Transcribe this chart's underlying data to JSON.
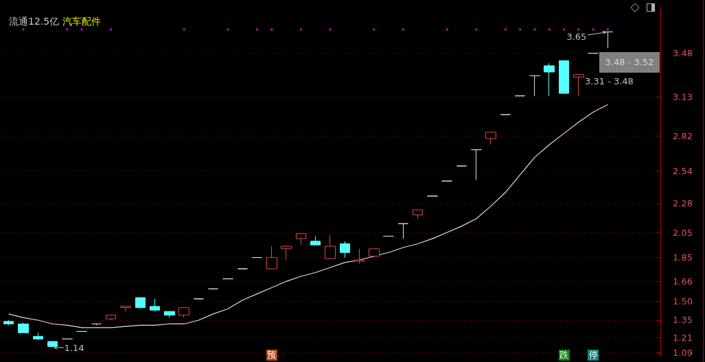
{
  "chart_data": {
    "type": "candlestick",
    "title": "流通12.5亿",
    "subtitle": "汽车配件",
    "categories": [
      null,
      null,
      null,
      null,
      null,
      null,
      null,
      null,
      null,
      null,
      null,
      null,
      null,
      null,
      null,
      null,
      null,
      null,
      null,
      null,
      null,
      null,
      null,
      null,
      null,
      null,
      null,
      null,
      null,
      null,
      null,
      null,
      null,
      null,
      null,
      null,
      null,
      null,
      null,
      null,
      null,
      null
    ],
    "ohlc": [
      [
        1.34,
        1.35,
        1.31,
        1.32
      ],
      [
        1.32,
        1.33,
        1.25,
        1.25
      ],
      [
        1.22,
        1.25,
        1.19,
        1.2
      ],
      [
        1.18,
        1.18,
        1.14,
        1.14
      ],
      [
        1.2,
        1.2,
        1.2,
        1.2
      ],
      [
        1.26,
        1.26,
        1.26,
        1.26
      ],
      [
        1.32,
        1.32,
        1.31,
        1.32
      ],
      [
        1.36,
        1.39,
        1.35,
        1.39
      ],
      [
        1.45,
        1.46,
        1.42,
        1.46
      ],
      [
        1.53,
        1.53,
        1.44,
        1.45
      ],
      [
        1.46,
        1.52,
        1.42,
        1.43
      ],
      [
        1.42,
        1.42,
        1.37,
        1.39
      ],
      [
        1.39,
        1.45,
        1.37,
        1.45
      ],
      [
        1.52,
        1.52,
        1.52,
        1.52
      ],
      [
        1.6,
        1.6,
        1.6,
        1.6
      ],
      [
        1.68,
        1.68,
        1.68,
        1.68
      ],
      [
        1.76,
        1.76,
        1.76,
        1.76
      ],
      [
        1.85,
        1.85,
        1.85,
        1.85
      ],
      [
        1.76,
        1.94,
        1.76,
        1.85
      ],
      [
        1.92,
        1.94,
        1.83,
        1.94
      ],
      [
        2.0,
        2.04,
        1.95,
        2.04
      ],
      [
        1.98,
        2.02,
        1.95,
        1.95
      ],
      [
        1.84,
        2.03,
        1.84,
        1.94
      ],
      [
        1.96,
        1.98,
        1.85,
        1.89
      ],
      [
        1.82,
        1.92,
        1.8,
        1.83
      ],
      [
        1.86,
        1.92,
        1.85,
        1.92
      ],
      [
        2.02,
        2.02,
        2.02,
        2.02
      ],
      [
        2.12,
        2.12,
        2.0,
        2.12
      ],
      [
        2.19,
        2.23,
        2.16,
        2.23
      ],
      [
        2.34,
        2.34,
        2.34,
        2.34
      ],
      [
        2.46,
        2.46,
        2.46,
        2.46
      ],
      [
        2.58,
        2.58,
        2.58,
        2.58
      ],
      [
        2.71,
        2.71,
        2.47,
        2.71
      ],
      [
        2.8,
        2.85,
        2.75,
        2.85
      ],
      [
        2.99,
        2.99,
        2.99,
        2.99
      ],
      [
        3.14,
        3.14,
        3.14,
        3.14
      ],
      [
        3.3,
        3.3,
        3.14,
        3.3
      ],
      [
        3.38,
        3.4,
        3.14,
        3.33
      ],
      [
        3.42,
        3.42,
        3.16,
        3.16
      ],
      [
        3.29,
        3.31,
        3.14,
        3.31
      ],
      [
        3.48,
        3.48,
        3.48,
        3.48
      ],
      [
        3.65,
        3.65,
        3.52,
        3.65
      ]
    ],
    "colors": [
      "#54ffff",
      "#54ffff",
      "#54ffff",
      "#54ffff",
      "#e0e0e0",
      "#e0e0e0",
      "#e0e0e0",
      "#e04848",
      "#e04848",
      "#54ffff",
      "#54ffff",
      "#54ffff",
      "#e04848",
      "#e0e0e0",
      "#e0e0e0",
      "#e0e0e0",
      "#e0e0e0",
      "#e0e0e0",
      "#e04848",
      "#e04848",
      "#e04848",
      "#54ffff",
      "#e04848",
      "#54ffff",
      "#e04848",
      "#e04848",
      "#e0e0e0",
      "#e0e0e0",
      "#e04848",
      "#e0e0e0",
      "#e0e0e0",
      "#e0e0e0",
      "#e0e0e0",
      "#e04848",
      "#e0e0e0",
      "#e0e0e0",
      "#e0e0e0",
      "#54ffff",
      "#54ffff",
      "#e04848",
      "#e0e0e0",
      "#e0e0e0"
    ],
    "series": [
      {
        "type": "line",
        "color": "#e0e0e0",
        "values": [
          1.4,
          1.37,
          1.35,
          1.32,
          1.31,
          1.29,
          1.29,
          1.29,
          1.3,
          1.31,
          1.31,
          1.32,
          1.32,
          1.35,
          1.4,
          1.44,
          1.51,
          1.56,
          1.61,
          1.66,
          1.7,
          1.73,
          1.77,
          1.81,
          1.83,
          1.86,
          1.89,
          1.93,
          1.96,
          2.0,
          2.05,
          2.1,
          2.16,
          2.26,
          2.37,
          2.51,
          2.65,
          2.75,
          2.84,
          2.93,
          3.01,
          3.07
        ]
      },
      {
        "type": "scatter",
        "color": "#ff00ff",
        "values": [
          null,
          3.67,
          null,
          null,
          3.67,
          3.67,
          null,
          3.67,
          null,
          null,
          null,
          null,
          3.67,
          null,
          null,
          3.67,
          null,
          3.67,
          3.67,
          null,
          3.67,
          null,
          3.67,
          null,
          null,
          3.67,
          null,
          3.67,
          null,
          null,
          3.67,
          null,
          3.67,
          null,
          3.67,
          3.67,
          3.67,
          3.67,
          3.67,
          3.67,
          3.67,
          3.67
        ]
      }
    ],
    "ylim": [
      1.06,
      3.85
    ],
    "yticks": [
      1.09,
      1.21,
      1.35,
      {
        "value": 1.5,
        "label": "1.50"
      },
      1.66,
      1.85,
      2.05,
      2.28,
      2.54,
      2.82,
      3.13,
      3.48
    ],
    "grid": "y",
    "annotations": [
      "3.65",
      "1.14",
      "3.48 - 3.52",
      "3.31 - 3.48",
      "预",
      "跌",
      "停"
    ]
  }
}
